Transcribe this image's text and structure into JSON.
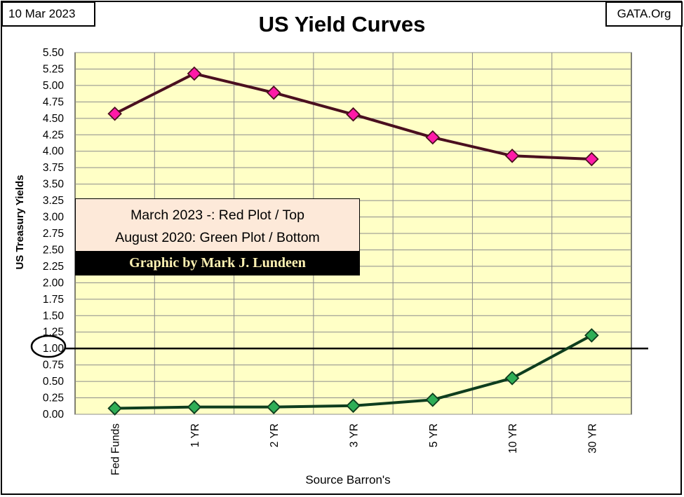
{
  "header": {
    "date": "10 Mar 2023",
    "site": "GATA.Org",
    "title": "US Yield Curves"
  },
  "legend": {
    "line1": "March 2023 -: Red Plot / Top",
    "line2": "August 2020: Green Plot / Bottom",
    "credit": "Graphic by Mark J. Lundeen"
  },
  "colors": {
    "plot_background": "#ffffc6",
    "red_line": "#4a0f1f",
    "red_marker": "#ff1aa8",
    "green_line": "#0e3d1e",
    "green_marker": "#2fae56",
    "reference_line": "#000000"
  },
  "chart_data": {
    "type": "line",
    "title": "US Yield Curves",
    "xlabel": "Source Barron's",
    "ylabel": "US Treasury Yields",
    "categories": [
      "Fed Funds",
      "1 YR",
      "2 YR",
      "3 YR",
      "5 YR",
      "10 YR",
      "30 YR"
    ],
    "y_ticks": [
      "0.00",
      "0.25",
      "0.50",
      "0.75",
      "1.00",
      "1.25",
      "1.50",
      "1.75",
      "2.00",
      "2.25",
      "2.50",
      "2.75",
      "3.00",
      "3.25",
      "3.50",
      "3.75",
      "4.00",
      "4.25",
      "4.50",
      "4.75",
      "5.00",
      "5.25",
      "5.50"
    ],
    "ylim": [
      0,
      5.5
    ],
    "grid": true,
    "reference_line": {
      "value": 1.0,
      "label": "1.00",
      "circled": true
    },
    "series": [
      {
        "values": [
          4.57,
          5.18,
          4.89,
          4.56,
          4.21,
          3.93,
          3.88
        ]
      },
      {
        "values": [
          0.09,
          0.11,
          0.11,
          0.13,
          0.22,
          0.55,
          1.2
        ]
      }
    ]
  }
}
